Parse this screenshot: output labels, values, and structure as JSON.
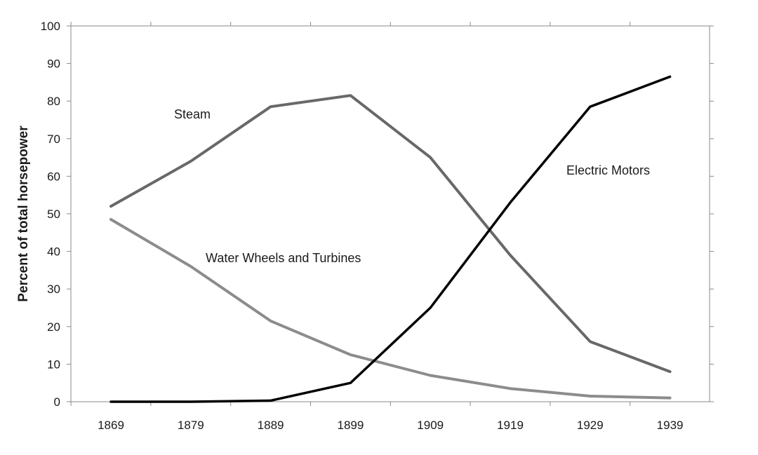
{
  "chart_data": {
    "type": "line",
    "x": [
      1869,
      1879,
      1889,
      1899,
      1909,
      1919,
      1929,
      1939
    ],
    "x_tick_labels": [
      "1869",
      "1879",
      "1889",
      "1899",
      "1909",
      "1919",
      "1929",
      "1939"
    ],
    "ylabel": "Percent of total horsepower",
    "xlabel": "",
    "ylim": [
      0,
      100
    ],
    "y_ticks": [
      0,
      10,
      20,
      30,
      40,
      50,
      60,
      70,
      80,
      90,
      100
    ],
    "grid": false,
    "legend": "inline labels",
    "series": [
      {
        "name": "Steam",
        "color": "#686868",
        "values": [
          52,
          64,
          78.5,
          81.5,
          65,
          39,
          16,
          8
        ]
      },
      {
        "name": "Water Wheels and Turbines",
        "color": "#8c8c8c",
        "values": [
          48.5,
          36,
          21.5,
          12.5,
          7,
          3.5,
          1.5,
          1
        ]
      },
      {
        "name": "Electric Motors",
        "color": "#000000",
        "values": [
          0,
          0,
          0.3,
          5,
          25,
          53,
          78.5,
          86.5
        ]
      }
    ]
  }
}
